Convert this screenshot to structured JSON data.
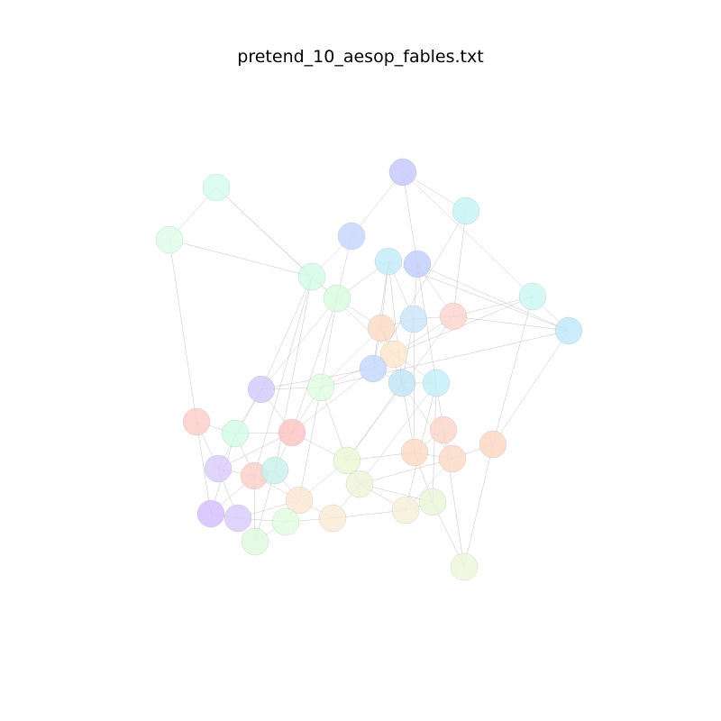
{
  "title": "pretend_10_aesop_fables.txt",
  "edge_color": "#b0b0b0",
  "nodes": [
    {
      "id": 0,
      "color": "#c9c9ff"
    },
    {
      "id": 1,
      "color": "#c7f3f6"
    },
    {
      "id": 2,
      "color": "#d3fbee"
    },
    {
      "id": 3,
      "color": "#defbe8"
    },
    {
      "id": 4,
      "color": "#c7d6fb"
    },
    {
      "id": 5,
      "color": "#c3ecf8"
    },
    {
      "id": 6,
      "color": "#c4cffb"
    },
    {
      "id": 7,
      "color": "#d3fbe6"
    },
    {
      "id": 8,
      "color": "#d9fbdf"
    },
    {
      "id": 9,
      "color": "#cde6fb"
    },
    {
      "id": 10,
      "color": "#fdd6d0"
    },
    {
      "id": 11,
      "color": "#fcdcc7"
    },
    {
      "id": 12,
      "color": "#cdf7f2"
    },
    {
      "id": 13,
      "color": "#c2eaf8"
    },
    {
      "id": 14,
      "color": "#fde7cf"
    },
    {
      "id": 15,
      "color": "#c6d8fb"
    },
    {
      "id": 16,
      "color": "#c3e5f7"
    },
    {
      "id": 17,
      "color": "#c6f0f8"
    },
    {
      "id": 18,
      "color": "#d1cdfb"
    },
    {
      "id": 19,
      "color": "#e0fbe0"
    },
    {
      "id": 20,
      "color": "#fdcfcc"
    },
    {
      "id": 21,
      "color": "#d5fbe8"
    },
    {
      "id": 22,
      "color": "#fbc5c3"
    },
    {
      "id": 23,
      "color": "#fcd7cc"
    },
    {
      "id": 24,
      "color": "#fcdcc7"
    },
    {
      "id": 25,
      "color": "#fbdbc8"
    },
    {
      "id": 26,
      "color": "#fcd8c6"
    },
    {
      "id": 27,
      "color": "#edf7d8"
    },
    {
      "id": 28,
      "color": "#dcccfa"
    },
    {
      "id": 29,
      "color": "#fcd0cc"
    },
    {
      "id": 30,
      "color": "#cbf1ee"
    },
    {
      "id": 31,
      "color": "#f0f5dc"
    },
    {
      "id": 32,
      "color": "#fce6d3"
    },
    {
      "id": 33,
      "color": "#d6c1fb"
    },
    {
      "id": 34,
      "color": "#d8cdfb"
    },
    {
      "id": 35,
      "color": "#dff9df"
    },
    {
      "id": 36,
      "color": "#e3fbe3"
    },
    {
      "id": 37,
      "color": "#fcebd7"
    },
    {
      "id": 38,
      "color": "#f7f0da"
    },
    {
      "id": 39,
      "color": "#ebf7d9"
    },
    {
      "id": 40,
      "color": "#eff7dc"
    }
  ],
  "edges": [
    [
      0,
      4
    ],
    [
      0,
      1
    ],
    [
      0,
      13
    ],
    [
      0,
      6
    ],
    [
      1,
      10
    ],
    [
      1,
      15
    ],
    [
      2,
      3
    ],
    [
      2,
      7
    ],
    [
      2,
      14
    ],
    [
      3,
      7
    ],
    [
      3,
      20
    ],
    [
      4,
      7
    ],
    [
      4,
      8
    ],
    [
      5,
      11
    ],
    [
      5,
      9
    ],
    [
      5,
      8
    ],
    [
      5,
      15
    ],
    [
      5,
      16
    ],
    [
      6,
      10
    ],
    [
      6,
      9
    ],
    [
      6,
      13
    ],
    [
      6,
      17
    ],
    [
      7,
      8
    ],
    [
      7,
      18
    ],
    [
      7,
      29
    ],
    [
      7,
      30
    ],
    [
      8,
      11
    ],
    [
      8,
      19
    ],
    [
      8,
      22
    ],
    [
      8,
      18
    ],
    [
      9,
      10
    ],
    [
      9,
      11
    ],
    [
      9,
      16
    ],
    [
      10,
      12
    ],
    [
      10,
      13
    ],
    [
      10,
      14
    ],
    [
      11,
      14
    ],
    [
      11,
      15
    ],
    [
      11,
      16
    ],
    [
      12,
      14
    ],
    [
      13,
      19
    ],
    [
      13,
      26
    ],
    [
      14,
      15
    ],
    [
      14,
      17
    ],
    [
      14,
      19
    ],
    [
      15,
      16
    ],
    [
      15,
      18
    ],
    [
      15,
      22
    ],
    [
      16,
      17
    ],
    [
      16,
      24
    ],
    [
      16,
      25
    ],
    [
      16,
      27
    ],
    [
      17,
      23
    ],
    [
      17,
      31
    ],
    [
      17,
      39
    ],
    [
      18,
      19
    ],
    [
      18,
      21
    ],
    [
      18,
      22
    ],
    [
      18,
      28
    ],
    [
      19,
      27
    ],
    [
      19,
      22
    ],
    [
      20,
      21
    ],
    [
      20,
      28
    ],
    [
      21,
      22
    ],
    [
      21,
      29
    ],
    [
      21,
      33
    ],
    [
      22,
      28
    ],
    [
      22,
      30
    ],
    [
      22,
      27
    ],
    [
      23,
      24
    ],
    [
      23,
      25
    ],
    [
      23,
      40
    ],
    [
      24,
      25
    ],
    [
      24,
      39
    ],
    [
      25,
      31
    ],
    [
      25,
      38
    ],
    [
      26,
      25
    ],
    [
      26,
      40
    ],
    [
      27,
      31
    ],
    [
      27,
      32
    ],
    [
      27,
      24
    ],
    [
      28,
      29
    ],
    [
      28,
      34
    ],
    [
      29,
      30
    ],
    [
      29,
      32
    ],
    [
      29,
      33
    ],
    [
      30,
      32
    ],
    [
      30,
      35
    ],
    [
      31,
      37
    ],
    [
      31,
      38
    ],
    [
      32,
      34
    ],
    [
      32,
      36
    ],
    [
      32,
      37
    ],
    [
      33,
      34
    ],
    [
      34,
      36
    ],
    [
      35,
      36
    ],
    [
      36,
      37
    ],
    [
      37,
      38
    ],
    [
      38,
      39
    ],
    [
      39,
      40
    ],
    [
      13,
      5
    ],
    [
      20,
      33
    ],
    [
      12,
      26
    ],
    [
      10,
      27
    ],
    [
      9,
      24
    ],
    [
      11,
      19
    ],
    [
      29,
      35
    ],
    [
      31,
      39
    ],
    [
      17,
      38
    ],
    [
      19,
      32
    ]
  ]
}
